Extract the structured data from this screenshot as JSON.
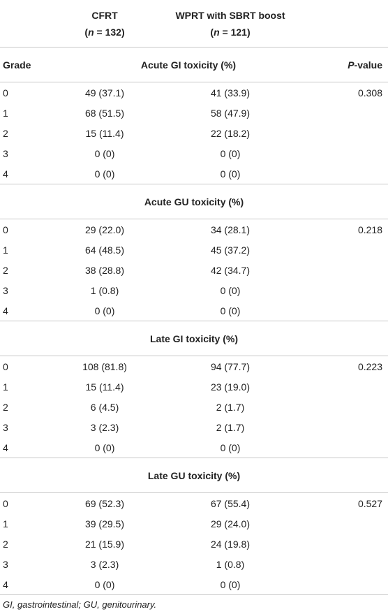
{
  "header": {
    "columns": [
      {
        "label": "CFRT",
        "sample": {
          "open": "(",
          "symbol": "n",
          "rest": " = 132)"
        }
      },
      {
        "label": "WPRT with SBRT boost",
        "sample": {
          "open": "(",
          "symbol": "n",
          "rest": " = 121)"
        }
      }
    ],
    "grade": "Grade",
    "p_value": {
      "symbol": "P",
      "rest": "-value"
    }
  },
  "sections": [
    {
      "title": "Acute GI toxicity (%)",
      "rows": [
        [
          "0",
          "49 (37.1)",
          "41 (33.9)",
          "0.308"
        ],
        [
          "1",
          "68 (51.5)",
          "58 (47.9)"
        ],
        [
          "2",
          "15 (11.4)",
          "22 (18.2)"
        ],
        [
          "3",
          "0 (0)",
          "0 (0)"
        ],
        [
          "4",
          "0 (0)",
          "0 (0)"
        ]
      ]
    },
    {
      "title": "Acute GU toxicity (%)",
      "rows": [
        [
          "0",
          "29 (22.0)",
          "34 (28.1)",
          "0.218"
        ],
        [
          "1",
          "64 (48.5)",
          "45 (37.2)"
        ],
        [
          "2",
          "38 (28.8)",
          "42 (34.7)"
        ],
        [
          "3",
          "1 (0.8)",
          "0 (0)"
        ],
        [
          "4",
          "0 (0)",
          "0 (0)"
        ]
      ]
    },
    {
      "title": "Late GI toxicity (%)",
      "rows": [
        [
          "0",
          "108 (81.8)",
          "94 (77.7)",
          "0.223"
        ],
        [
          "1",
          "15 (11.4)",
          "23 (19.0)"
        ],
        [
          "2",
          "6 (4.5)",
          "2 (1.7)"
        ],
        [
          "3",
          "3 (2.3)",
          "2 (1.7)"
        ],
        [
          "4",
          "0 (0)",
          "0 (0)"
        ]
      ]
    },
    {
      "title": "Late GU toxicity (%)",
      "rows": [
        [
          "0",
          "69 (52.3)",
          "67 (55.4)",
          "0.527"
        ],
        [
          "1",
          "39 (29.5)",
          "29 (24.0)"
        ],
        [
          "2",
          "21 (15.9)",
          "24 (19.8)"
        ],
        [
          "3",
          "3 (2.3)",
          "1 (0.8)"
        ],
        [
          "4",
          "0 (0)",
          "0 (0)"
        ]
      ]
    }
  ],
  "footnote": "GI, gastrointestinal; GU, genitourinary."
}
